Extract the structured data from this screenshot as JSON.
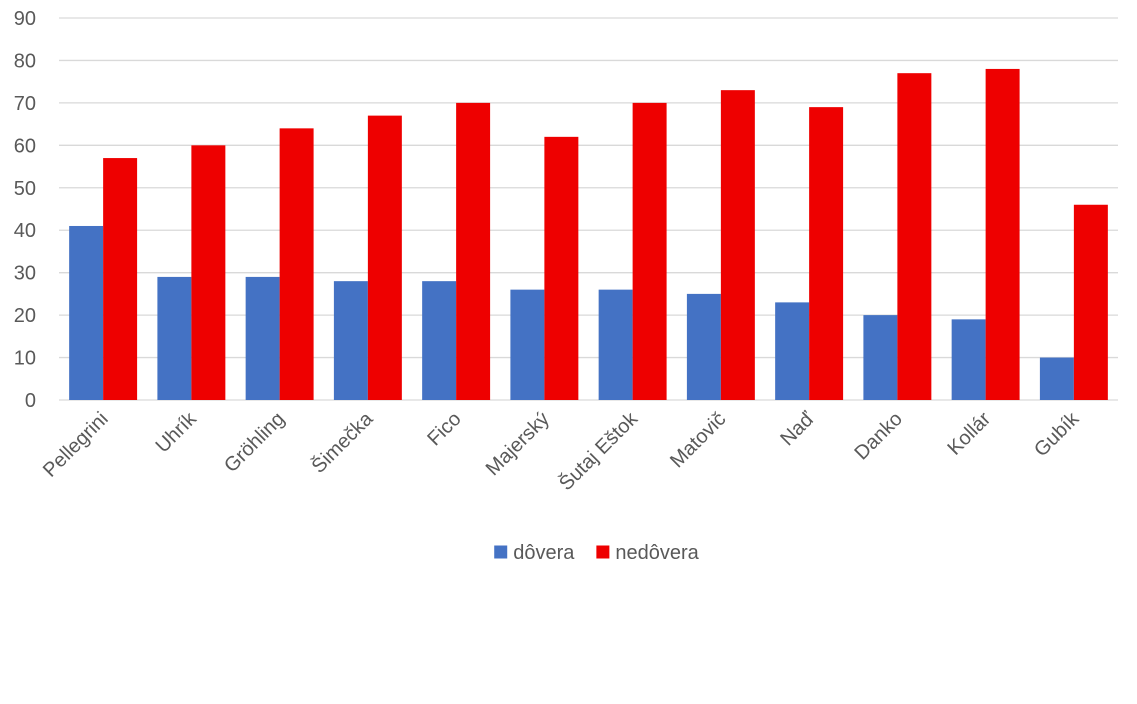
{
  "chart_data": {
    "type": "bar",
    "title": "",
    "xlabel": "",
    "ylabel": "",
    "ylim": [
      0,
      90
    ],
    "yticks": [
      0,
      10,
      20,
      30,
      40,
      50,
      60,
      70,
      80,
      90
    ],
    "grid": true,
    "legend_position": "bottom",
    "categories": [
      "Pellegrini",
      "Uhrík",
      "Gröhling",
      "Šimečka",
      "Fico",
      "Majerský",
      "Šutaj Eštok",
      "Matovič",
      "Naď",
      "Danko",
      "Kollár",
      "Gubík"
    ],
    "series": [
      {
        "name": "dôvera",
        "color": "#4472c4",
        "values": [
          41,
          29,
          29,
          28,
          28,
          26,
          26,
          25,
          23,
          20,
          19,
          10
        ]
      },
      {
        "name": "nedôvera",
        "color": "#ee0000",
        "values": [
          57,
          60,
          64,
          67,
          70,
          62,
          70,
          73,
          69,
          77,
          78,
          46
        ]
      }
    ]
  }
}
